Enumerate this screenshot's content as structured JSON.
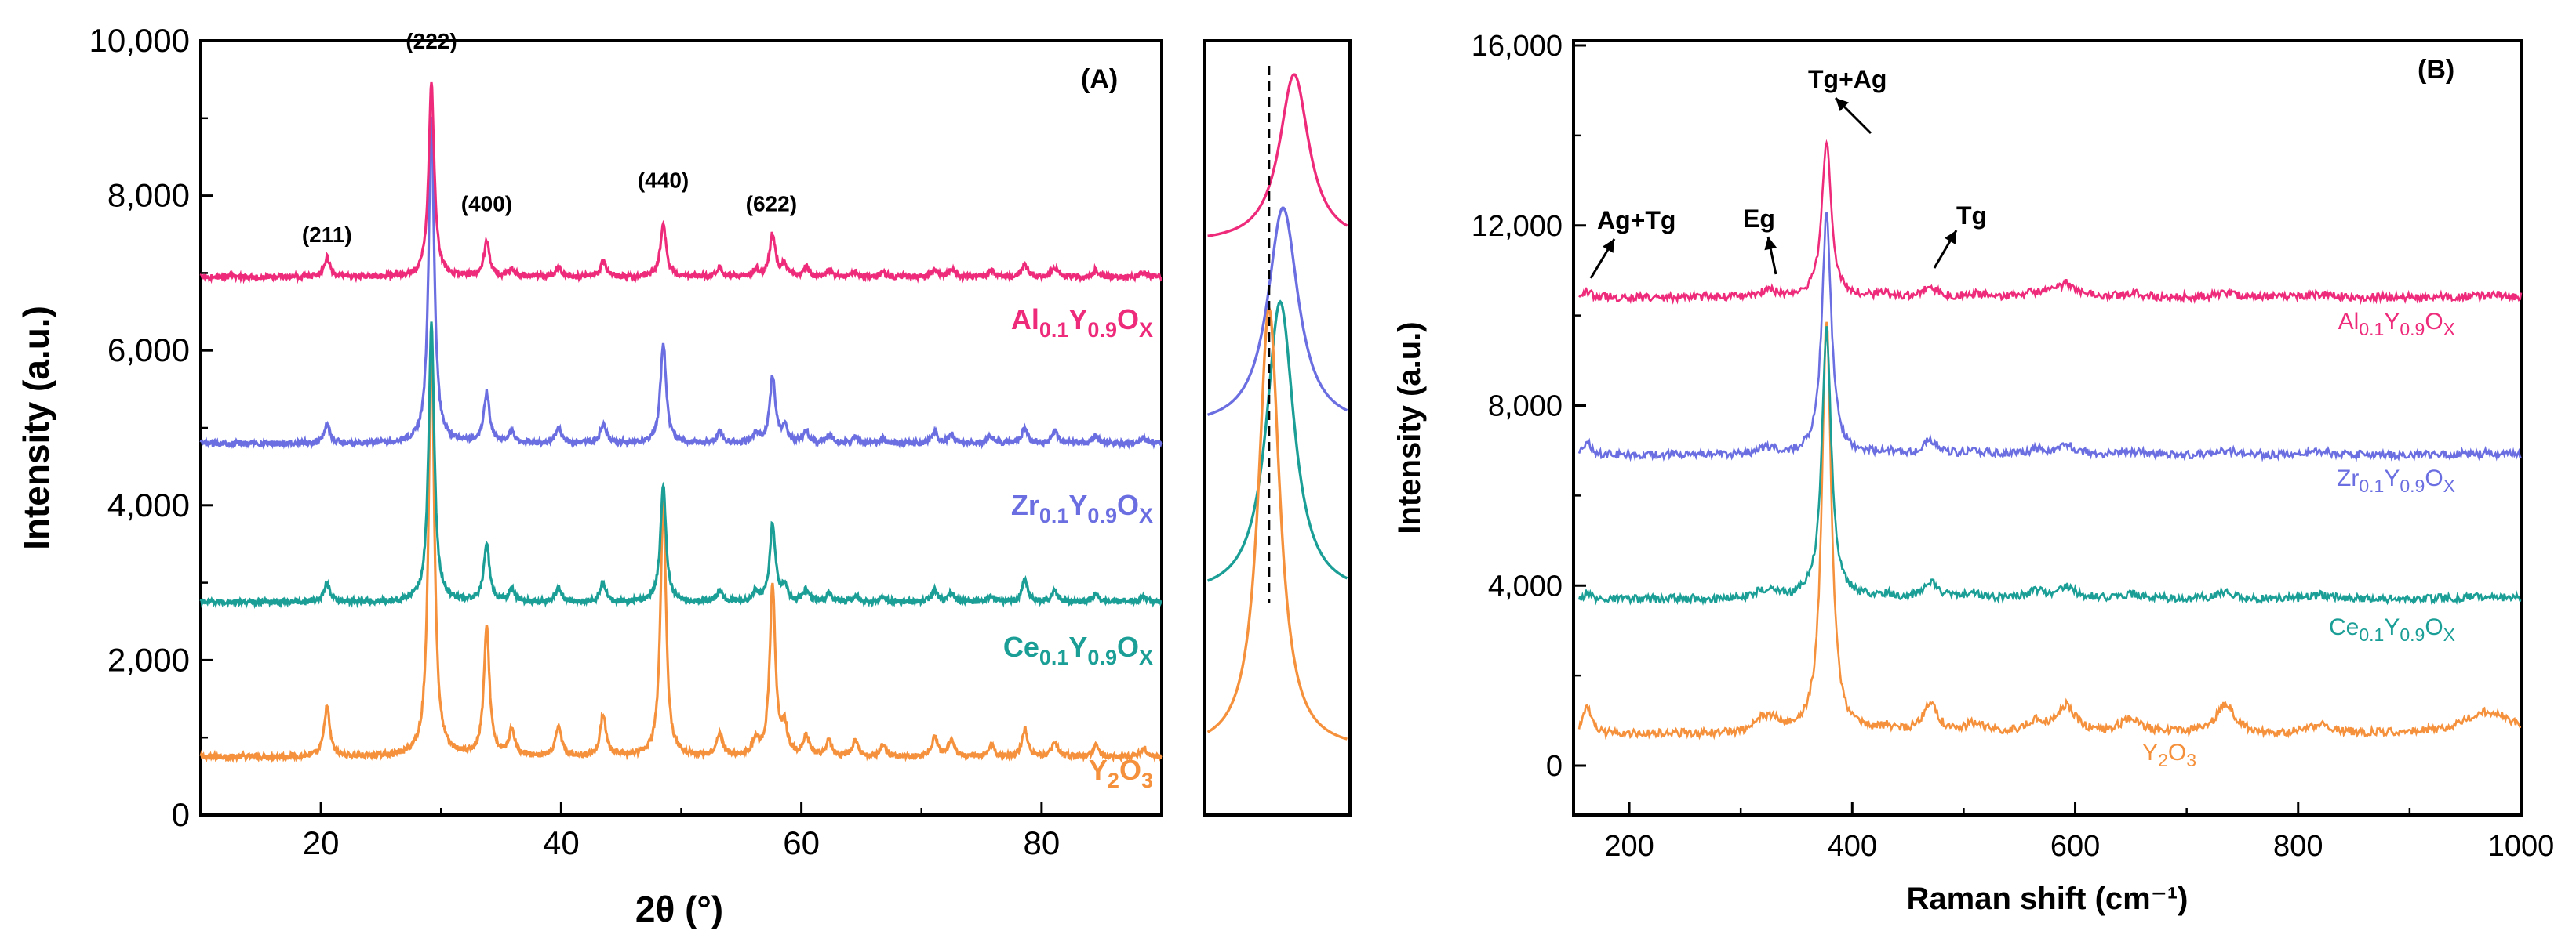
{
  "chart_data": [
    {
      "panel": "A",
      "type": "line",
      "xlabel": "2θ (°)",
      "ylabel": "Intensity (a.u.)",
      "xlim": [
        10,
        90
      ],
      "ylim": [
        0,
        10000
      ],
      "xticks": [
        20,
        40,
        60,
        80
      ],
      "yticks": [
        {
          "v": 0,
          "label": "0"
        },
        {
          "v": 2000,
          "label": "2,000"
        },
        {
          "v": 4000,
          "label": "4,000"
        },
        {
          "v": 6000,
          "label": "6,000"
        },
        {
          "v": 8000,
          "label": "8,000"
        },
        {
          "v": 10000,
          "label": "10,000"
        }
      ],
      "peak_labels": [
        {
          "text": "(211)",
          "x": 20.5,
          "y": 7400
        },
        {
          "text": "(222)",
          "x": 29.2,
          "y": 9900
        },
        {
          "text": "(400)",
          "x": 33.8,
          "y": 7800
        },
        {
          "text": "(440)",
          "x": 48.5,
          "y": 8100
        },
        {
          "text": "(622)",
          "x": 57.5,
          "y": 7800
        }
      ],
      "peaks": [
        20.5,
        29.2,
        33.8,
        35.9,
        39.8,
        43.5,
        48.5,
        53.2,
        56.2,
        57.6,
        58.6,
        60.4,
        62.3,
        64.5,
        66.8,
        71.1,
        72.5,
        75.8,
        78.6,
        81.1,
        84.5,
        88.5
      ],
      "series": [
        {
          "name": "Y2O3",
          "label_main": [
            "Y",
            "O"
          ],
          "label_sub": [
            "2",
            "3"
          ],
          "color": "#f5913c",
          "baseline": 750,
          "heights": [
            650,
            5500,
            1650,
            350,
            400,
            550,
            3300,
            300,
            200,
            2200,
            350,
            250,
            200,
            200,
            150,
            250,
            200,
            150,
            350,
            200,
            150,
            120
          ]
        },
        {
          "name": "Ce0.1Y0.9Ox",
          "label_main": [
            "Ce",
            "Y",
            "O"
          ],
          "label_sub": [
            "0.1",
            "0.9",
            "X"
          ],
          "color": "#1a9e96",
          "baseline": 2750,
          "heights": [
            250,
            3600,
            750,
            150,
            180,
            250,
            1500,
            150,
            120,
            1000,
            200,
            150,
            100,
            80,
            60,
            150,
            120,
            90,
            300,
            150,
            100,
            80
          ]
        },
        {
          "name": "Zr0.1Y0.9Ox",
          "label_main": [
            "Zr",
            "Y",
            "O"
          ],
          "label_sub": [
            "0.1",
            "0.9",
            "X"
          ],
          "color": "#6a6ee0",
          "baseline": 4800,
          "heights": [
            250,
            4200,
            650,
            150,
            180,
            250,
            1300,
            150,
            120,
            850,
            200,
            150,
            100,
            80,
            60,
            150,
            120,
            90,
            200,
            150,
            100,
            80
          ]
        },
        {
          "name": "Al0.1Y0.9Ox",
          "label_main": [
            "Al",
            "Y",
            "O"
          ],
          "label_sub": [
            "0.1",
            "0.9",
            "X"
          ],
          "color": "#ee2a7b",
          "baseline": 6950,
          "heights": [
            250,
            2500,
            450,
            100,
            120,
            200,
            700,
            120,
            100,
            550,
            150,
            120,
            80,
            60,
            50,
            100,
            100,
            80,
            150,
            120,
            80,
            60
          ]
        }
      ]
    },
    {
      "panel": "inset",
      "type": "line",
      "description_series_order": [
        "Al0.1Y0.9Ox",
        "Zr0.1Y0.9Ox",
        "Ce0.1Y0.9Ox",
        "Y2O3"
      ],
      "xlim": [
        28.0,
        30.6
      ],
      "reference_line_x": 29.15,
      "peak_centers": [
        29.6,
        29.4,
        29.35,
        29.15
      ],
      "colors": [
        "#ee2a7b",
        "#6a6ee0",
        "#1a9e96",
        "#f5913c"
      ]
    },
    {
      "panel": "B",
      "type": "line",
      "xlabel": "Raman shift (cm⁻¹)",
      "ylabel": "Intensity (a.u.)",
      "xlim": [
        150,
        1000
      ],
      "ylim": [
        -1000,
        16000
      ],
      "xticks": [
        200,
        400,
        600,
        800,
        1000
      ],
      "yticks": [
        {
          "v": 0,
          "label": "0"
        },
        {
          "v": 4000,
          "label": "4,000"
        },
        {
          "v": 8000,
          "label": "8,000"
        },
        {
          "v": 12000,
          "label": "12,000"
        },
        {
          "v": 16000,
          "label": "16,000"
        }
      ],
      "annotations": [
        {
          "text": "Ag+Tg",
          "x": 160,
          "y": 10600
        },
        {
          "text": "Eg",
          "x": 315,
          "y": 10700
        },
        {
          "text": "Tg+Ag",
          "x": 377,
          "y": 14000
        },
        {
          "text": "Tg",
          "x": 470,
          "y": 10700
        }
      ],
      "peaks": [
        162,
        320,
        330,
        377,
        430,
        470,
        510,
        565,
        592,
        650,
        735,
        820,
        970
      ],
      "widths": [
        4,
        8,
        6,
        5,
        8,
        8,
        10,
        10,
        10,
        12,
        10,
        12,
        25
      ],
      "series": [
        {
          "name": "Y2O3",
          "label_main": [
            "Y",
            "O"
          ],
          "label_sub": [
            "2",
            "3"
          ],
          "color": "#f5913c",
          "baseline": 700,
          "heights": [
            650,
            300,
            200,
            9200,
            100,
            650,
            200,
            250,
            600,
            300,
            650,
            200,
            500
          ]
        },
        {
          "name": "Ce0.1Y0.9Ox",
          "label_main": [
            "Ce",
            "Y",
            "O"
          ],
          "label_sub": [
            "0.1",
            "0.9",
            "X"
          ],
          "color": "#1a9e96",
          "baseline": 3700,
          "heights": [
            120,
            150,
            100,
            6000,
            80,
            350,
            100,
            150,
            250,
            100,
            150,
            80,
            50
          ]
        },
        {
          "name": "Zr0.1Y0.9Ox",
          "label_main": [
            "Zr",
            "Y",
            "O"
          ],
          "label_sub": [
            "0.1",
            "0.9",
            "X"
          ],
          "color": "#6a6ee0",
          "baseline": 6900,
          "heights": [
            300,
            100,
            80,
            5400,
            60,
            300,
            80,
            100,
            200,
            80,
            100,
            60,
            40
          ]
        },
        {
          "name": "Al0.1Y0.9Ox",
          "label_main": [
            "Al",
            "Y",
            "O"
          ],
          "label_sub": [
            "0.1",
            "0.9",
            "X"
          ],
          "color": "#ee2a7b",
          "baseline": 10400,
          "heights": [
            150,
            100,
            80,
            3500,
            60,
            200,
            80,
            100,
            300,
            80,
            100,
            60,
            40
          ]
        }
      ]
    }
  ],
  "panel_labels": {
    "a": "(A)",
    "b": "(B)"
  }
}
